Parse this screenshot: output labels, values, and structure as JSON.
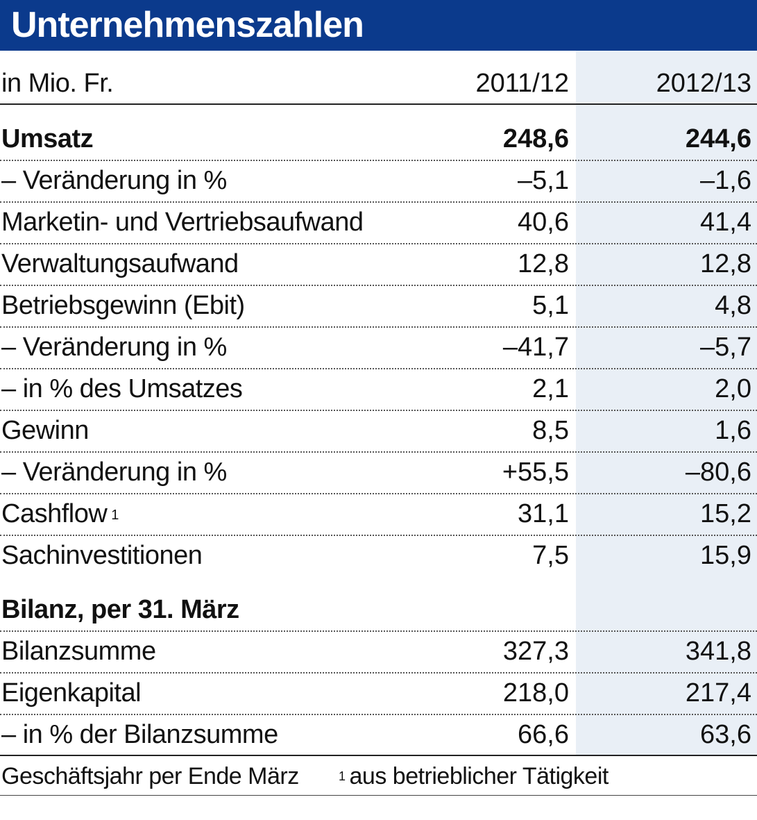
{
  "title": "Unternehmenszahlen",
  "header": {
    "unit": "in Mio. Fr.",
    "col1": "2011/12",
    "col2": "2012/13"
  },
  "rows": [
    {
      "label": "Umsatz",
      "v1": "248,6",
      "v2": "244,6"
    },
    {
      "label": "– Veränderung in %",
      "v1": "–5,1",
      "v2": "–1,6"
    },
    {
      "label": "Marketin- und Vertriebsaufwand",
      "v1": "40,6",
      "v2": "41,4"
    },
    {
      "label": "Verwaltungsaufwand",
      "v1": "12,8",
      "v2": "12,8"
    },
    {
      "label": "Betriebsgewinn (Ebit)",
      "v1": "5,1",
      "v2": "4,8"
    },
    {
      "label": "– Veränderung in %",
      "v1": "–41,7",
      "v2": "–5,7"
    },
    {
      "label": "– in % des Umsatzes",
      "v1": "2,1",
      "v2": "2,0"
    },
    {
      "label": "Gewinn",
      "v1": "8,5",
      "v2": "1,6"
    },
    {
      "label": "– Veränderung in %",
      "v1": "+55,5",
      "v2": "–80,6"
    },
    {
      "label": "Cashflow",
      "sup": "1",
      "v1": "31,1",
      "v2": "15,2"
    },
    {
      "label": "Sachinvestitionen",
      "v1": "7,5",
      "v2": "15,9"
    }
  ],
  "balance_heading": "Bilanz, per 31. März",
  "balance_rows": [
    {
      "label": "Bilanzsumme",
      "v1": "327,3",
      "v2": "341,8"
    },
    {
      "label": "Eigenkapital",
      "v1": "218,0",
      "v2": "217,4"
    },
    {
      "label": "– in % der Bilanzsumme",
      "v1": "66,6",
      "v2": "63,6"
    }
  ],
  "footnote": {
    "fiscal_year": "Geschäftsjahr per Ende März",
    "note_mark": "1",
    "note_text": "aus betrieblicher Tätigkeit"
  },
  "colors": {
    "title_bar": "#0b3a8c",
    "shaded_column": "#e9eff6"
  }
}
